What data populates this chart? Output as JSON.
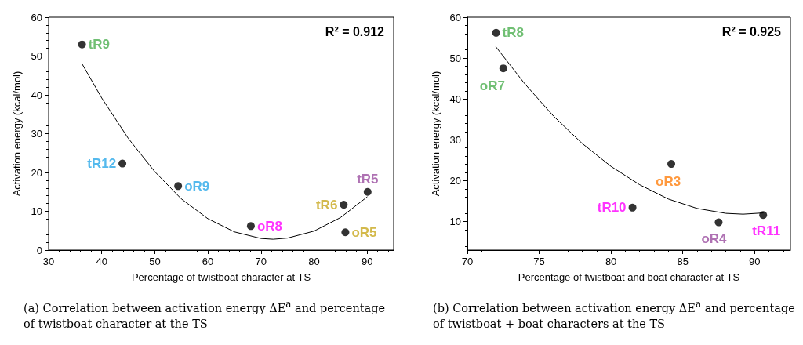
{
  "chart_data": [
    {
      "type": "scatter",
      "xlabel": "Percentage of twistboat character at TS",
      "ylabel": "Activation energy (kcal/mol)",
      "xlim": [
        30,
        95
      ],
      "xticks": [
        30,
        40,
        50,
        60,
        70,
        80,
        90
      ],
      "ylim": [
        0,
        60
      ],
      "yticks": [
        0,
        10,
        20,
        30,
        40,
        50,
        60
      ],
      "grid": false,
      "series": [
        {
          "color": "#000000",
          "marker": "circle",
          "x": [
            36.3,
            43.9,
            54.4,
            68.1,
            85.6,
            85.9,
            90.1
          ],
          "values": [
            53,
            22.3,
            16.5,
            6.2,
            11.7,
            4.6,
            15
          ]
        },
        {
          "type": "line",
          "color": "#000000",
          "marker": "none",
          "line_style": "solid",
          "x": [
            36.3,
            40,
            45,
            50,
            55,
            60,
            65,
            70,
            72.3,
            75,
            80,
            85,
            90
          ],
          "values": [
            48,
            39.2,
            28.8,
            20.2,
            13.2,
            8.1,
            4.7,
            3.0,
            2.8,
            3.1,
            4.9,
            8.4,
            13.7
          ]
        }
      ],
      "annotations": [
        "R² = 0.912",
        "(a) Correlation between activation energy ΔE$^{a}$ and percentage of twistboat character at the TS",
        {
          "text": "tR9",
          "x": 36.3,
          "y": 53
        },
        {
          "text": "tR12",
          "x": 43.9,
          "y": 22.3
        },
        {
          "text": "oR9",
          "x": 54.4,
          "y": 16.5
        },
        {
          "text": "oR8",
          "x": 68.1,
          "y": 6.2
        },
        {
          "text": "tR6",
          "x": 85.6,
          "y": 11.7
        },
        {
          "text": "oR5",
          "x": 85.9,
          "y": 4.6
        },
        {
          "text": "tR5",
          "x": 90.1,
          "y": 15
        }
      ]
    },
    {
      "type": "scatter",
      "xlabel": "Percentage of twistboat and boat character at TS",
      "ylabel": "Activation energy (kcal/mol)",
      "xlim": [
        70,
        92.5
      ],
      "xticks": [
        70,
        75,
        80,
        85,
        90
      ],
      "ylim": [
        3,
        60
      ],
      "yticks": [
        10,
        20,
        30,
        40,
        50,
        60
      ],
      "grid": false,
      "series": [
        {
          "color": "#000000",
          "marker": "circle",
          "x": [
            72.0,
            72.5,
            81.5,
            84.2,
            87.5,
            90.6
          ],
          "values": [
            56.2,
            47.5,
            13.4,
            24.1,
            9.8,
            11.6
          ]
        },
        {
          "type": "line",
          "color": "#000000",
          "marker": "none",
          "line_style": "solid",
          "x": [
            72,
            74,
            76,
            78,
            80,
            82,
            84,
            86,
            88,
            89.2,
            90.6
          ],
          "values": [
            52.7,
            43.7,
            35.8,
            29.1,
            23.5,
            19.0,
            15.5,
            13.2,
            12.0,
            11.8,
            12.1
          ]
        }
      ],
      "annotations": [
        "R² = 0.925",
        "(b) Correlation between activation energy ΔE$^{a}$ and percentage of twistboat + boat characters at the TS",
        {
          "text": "tR8",
          "x": 72.0,
          "y": 56.2
        },
        {
          "text": "oR7",
          "x": 72.5,
          "y": 47.5
        },
        {
          "text": "tR10",
          "x": 81.5,
          "y": 13.4
        },
        {
          "text": "oR3",
          "x": 84.2,
          "y": 24.1
        },
        {
          "text": "oR4",
          "x": 87.5,
          "y": 9.8
        },
        {
          "text": "tR11",
          "x": 90.6,
          "y": 11.6
        }
      ]
    }
  ]
}
